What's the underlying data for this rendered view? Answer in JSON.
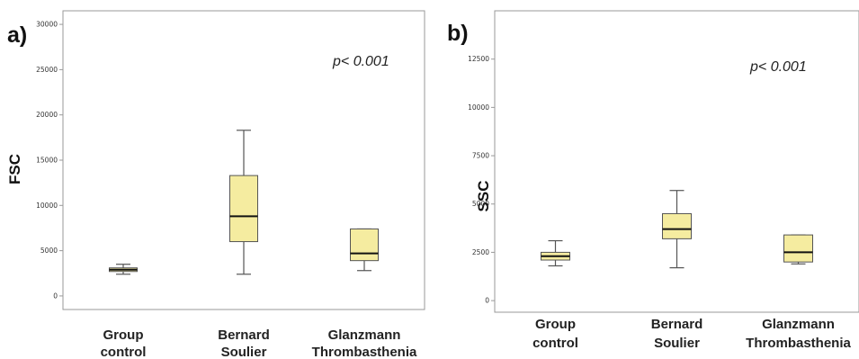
{
  "colors": {
    "box_fill": "#f5eca0",
    "box_stroke": "#555555",
    "median": "#111111",
    "axis": "#999999"
  },
  "chart_data": [
    {
      "type": "boxplot",
      "panel_label": "a)",
      "ylabel": "FSC",
      "annotation": "p< 0.001",
      "ylim": [
        -1500,
        31500
      ],
      "yticks": [
        0,
        5000,
        10000,
        15000,
        20000,
        25000,
        30000
      ],
      "ytick_labels": [
        "0",
        "5000",
        "10000",
        "15000",
        "20000",
        "25000",
        "30000"
      ],
      "categories": [
        {
          "line1": "Group",
          "line2": "control"
        },
        {
          "line1": "Bernard",
          "line2": "Soulier"
        },
        {
          "line1": "Glanzmann",
          "line2": "Thrombasthenia"
        }
      ],
      "boxes": [
        {
          "whisker_low": 2400,
          "q1": 2700,
          "median": 2900,
          "q3": 3100,
          "whisker_high": 3500
        },
        {
          "whisker_low": 2400,
          "q1": 6000,
          "median": 8800,
          "q3": 13300,
          "whisker_high": 18300
        },
        {
          "whisker_low": 2800,
          "q1": 3900,
          "median": 4700,
          "q3": 7400,
          "whisker_high": 7400
        }
      ]
    },
    {
      "type": "boxplot",
      "panel_label": "b)",
      "ylabel": "SSC",
      "annotation": "p< 0.001",
      "ylim": [
        -600,
        15000
      ],
      "yticks": [
        0,
        2500,
        5000,
        7500,
        10000,
        12500
      ],
      "ytick_labels": [
        "0",
        "2500",
        "5000",
        "7500",
        "10000",
        "12500"
      ],
      "categories": [
        {
          "line1": "Group",
          "line2": "control"
        },
        {
          "line1": "Bernard",
          "line2": "Soulier"
        },
        {
          "line1": "Glanzmann",
          "line2": "Thrombasthenia"
        }
      ],
      "boxes": [
        {
          "whisker_low": 1800,
          "q1": 2100,
          "median": 2300,
          "q3": 2500,
          "whisker_high": 3100
        },
        {
          "whisker_low": 1700,
          "q1": 3200,
          "median": 3700,
          "q3": 4500,
          "whisker_high": 5700
        },
        {
          "whisker_low": 1900,
          "q1": 2000,
          "median": 2500,
          "q3": 3400,
          "whisker_high": 3400
        }
      ]
    }
  ]
}
